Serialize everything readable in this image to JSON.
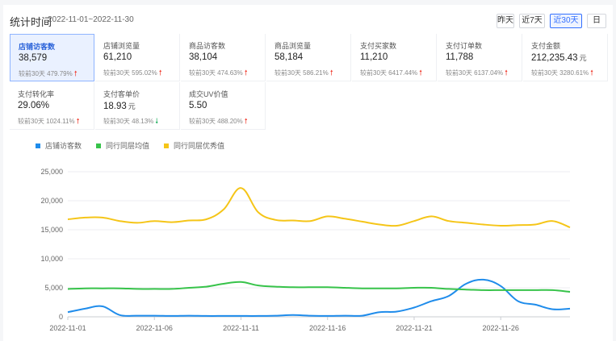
{
  "header": {
    "title": "统计时间",
    "date_range": "2022-11-01~2022-11-30",
    "buttons": [
      "昨天",
      "近7天",
      "近30天",
      "日"
    ],
    "active_button": "近30天"
  },
  "metrics": [
    {
      "label": "店铺访客数",
      "value": "38,579",
      "unit": "",
      "compare_prefix": "较前30天",
      "change": "479.79%",
      "trend": "up",
      "selected": true
    },
    {
      "label": "店铺浏览量",
      "value": "61,210",
      "unit": "",
      "compare_prefix": "较前30天",
      "change": "595.02%",
      "trend": "up"
    },
    {
      "label": "商品访客数",
      "value": "38,104",
      "unit": "",
      "compare_prefix": "较前30天",
      "change": "474.63%",
      "trend": "up"
    },
    {
      "label": "商品浏览量",
      "value": "58,184",
      "unit": "",
      "compare_prefix": "较前30天",
      "change": "586.21%",
      "trend": "up"
    },
    {
      "label": "支付买家数",
      "value": "11,210",
      "unit": "",
      "compare_prefix": "较前30天",
      "change": "6417.44%",
      "trend": "up"
    },
    {
      "label": "支付订单数",
      "value": "11,788",
      "unit": "",
      "compare_prefix": "较前30天",
      "change": "6137.04%",
      "trend": "up"
    },
    {
      "label": "支付金额",
      "value": "212,235.43",
      "unit": "元",
      "compare_prefix": "较前30天",
      "change": "3280.61%",
      "trend": "up"
    },
    {
      "label": "支付转化率",
      "value": "29.06%",
      "unit": "",
      "compare_prefix": "较前30天",
      "change": "1024.11%",
      "trend": "up"
    },
    {
      "label": "支付客单价",
      "value": "18.93",
      "unit": "元",
      "compare_prefix": "较前30天",
      "change": "48.13%",
      "trend": "down"
    },
    {
      "label": "成交UV价值",
      "value": "5.50",
      "unit": "",
      "compare_prefix": "较前30天",
      "change": "488.20%",
      "trend": "up"
    }
  ],
  "colors": {
    "series_blue": "#1f8ceb",
    "series_green": "#37c34a",
    "series_yellow": "#f5c518",
    "accent": "#3370ff",
    "up": "#f04134",
    "down": "#1aad5a"
  },
  "chart_data": {
    "type": "line",
    "x_ticks": [
      "2022-11-01",
      "2022-11-06",
      "2022-11-11",
      "2022-11-16",
      "2022-11-21",
      "2022-11-26"
    ],
    "y_ticks": [
      "0",
      "5,000",
      "10,000",
      "15,000",
      "20,000",
      "25,000"
    ],
    "ylim": [
      0,
      25000
    ],
    "grid": "horizontal",
    "legend_position": "top-left",
    "x": [
      "2022-11-01",
      "2022-11-02",
      "2022-11-03",
      "2022-11-04",
      "2022-11-05",
      "2022-11-06",
      "2022-11-07",
      "2022-11-08",
      "2022-11-09",
      "2022-11-10",
      "2022-11-11",
      "2022-11-12",
      "2022-11-13",
      "2022-11-14",
      "2022-11-15",
      "2022-11-16",
      "2022-11-17",
      "2022-11-18",
      "2022-11-19",
      "2022-11-20",
      "2022-11-21",
      "2022-11-22",
      "2022-11-23",
      "2022-11-24",
      "2022-11-25",
      "2022-11-26",
      "2022-11-27",
      "2022-11-28",
      "2022-11-29",
      "2022-11-30"
    ],
    "series": [
      {
        "name": "店铺访客数",
        "color": "#1f8ceb",
        "values": [
          800,
          1400,
          1800,
          300,
          200,
          200,
          150,
          200,
          150,
          150,
          150,
          150,
          200,
          300,
          200,
          150,
          200,
          200,
          800,
          900,
          1600,
          2700,
          3600,
          5700,
          6400,
          5300,
          2700,
          2100,
          1300,
          1400
        ]
      },
      {
        "name": "同行同层均值",
        "color": "#37c34a",
        "values": [
          4800,
          4900,
          4900,
          4900,
          4800,
          4800,
          4800,
          5000,
          5200,
          5700,
          6000,
          5400,
          5200,
          5100,
          5100,
          5100,
          5000,
          4900,
          4900,
          4900,
          5000,
          5000,
          4800,
          4700,
          4600,
          4600,
          4600,
          4600,
          4600,
          4300
        ]
      },
      {
        "name": "同行同层优秀值",
        "color": "#f5c518",
        "values": [
          16800,
          17100,
          17100,
          16500,
          16200,
          16500,
          16300,
          16600,
          16800,
          18500,
          22200,
          18000,
          16700,
          16600,
          16500,
          17300,
          16900,
          16400,
          15900,
          15700,
          16500,
          17300,
          16500,
          16200,
          15900,
          15700,
          15800,
          15900,
          16500,
          15400
        ]
      }
    ]
  }
}
